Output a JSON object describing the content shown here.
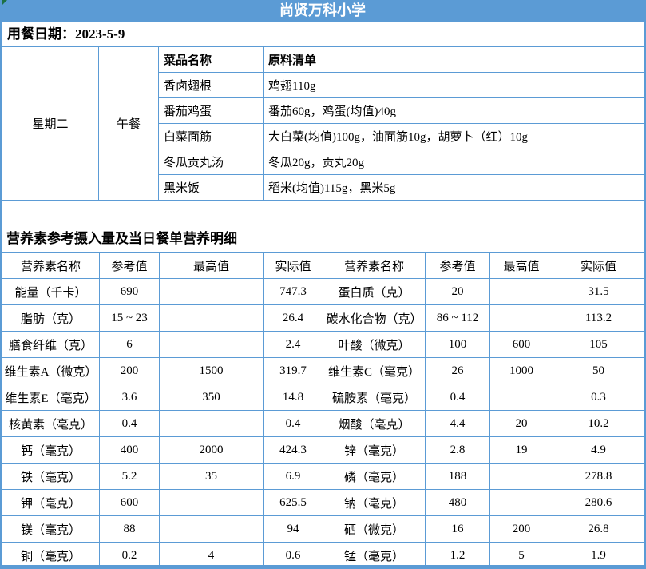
{
  "header": {
    "title": "尚贤万科小学",
    "date_label": "用餐日期：2023-5-9"
  },
  "menu": {
    "day": "星期二",
    "meal": "午餐",
    "col_dish": "菜品名称",
    "col_ingredients": "原料清单",
    "dishes": [
      {
        "name": "香卤翅根",
        "ingredients": "鸡翅110g"
      },
      {
        "name": "番茄鸡蛋",
        "ingredients": "番茄60g，鸡蛋(均值)40g"
      },
      {
        "name": "白菜面筋",
        "ingredients": "大白菜(均值)100g，油面筋10g，胡萝卜（红）10g"
      },
      {
        "name": "冬瓜贡丸汤",
        "ingredients": "冬瓜20g，贡丸20g"
      },
      {
        "name": "黑米饭",
        "ingredients": "稻米(均值)115g，黑米5g"
      }
    ]
  },
  "nutrition": {
    "section_title": "营养素参考摄入量及当日餐单营养明细",
    "headers": [
      "营养素名称",
      "参考值",
      "最高值",
      "实际值"
    ],
    "rows_left": [
      {
        "name": "能量（千卡）",
        "ref": "690",
        "max": "",
        "actual": "747.3"
      },
      {
        "name": "脂肪（克）",
        "ref": "15 ~ 23",
        "max": "",
        "actual": "26.4"
      },
      {
        "name": "膳食纤维（克）",
        "ref": "6",
        "max": "",
        "actual": "2.4"
      },
      {
        "name": "维生素A（微克）",
        "ref": "200",
        "max": "1500",
        "actual": "319.7"
      },
      {
        "name": "维生素E（毫克）",
        "ref": "3.6",
        "max": "350",
        "actual": "14.8"
      },
      {
        "name": "核黄素（毫克）",
        "ref": "0.4",
        "max": "",
        "actual": "0.4"
      },
      {
        "name": "钙（毫克）",
        "ref": "400",
        "max": "2000",
        "actual": "424.3"
      },
      {
        "name": "铁（毫克）",
        "ref": "5.2",
        "max": "35",
        "actual": "6.9"
      },
      {
        "name": "钾（毫克）",
        "ref": "600",
        "max": "",
        "actual": "625.5"
      },
      {
        "name": "镁（毫克）",
        "ref": "88",
        "max": "",
        "actual": "94"
      },
      {
        "name": "铜（毫克）",
        "ref": "0.2",
        "max": "4",
        "actual": "0.6"
      }
    ],
    "rows_right": [
      {
        "name": "蛋白质（克）",
        "ref": "20",
        "max": "",
        "actual": "31.5"
      },
      {
        "name": "碳水化合物（克）",
        "ref": "86 ~ 112",
        "max": "",
        "actual": "113.2"
      },
      {
        "name": "叶酸（微克）",
        "ref": "100",
        "max": "600",
        "actual": "105"
      },
      {
        "name": "维生素C（毫克）",
        "ref": "26",
        "max": "1000",
        "actual": "50"
      },
      {
        "name": "硫胺素（毫克）",
        "ref": "0.4",
        "max": "",
        "actual": "0.3"
      },
      {
        "name": "烟酸（毫克）",
        "ref": "4.4",
        "max": "20",
        "actual": "10.2"
      },
      {
        "name": "锌（毫克）",
        "ref": "2.8",
        "max": "19",
        "actual": "4.9"
      },
      {
        "name": "磷（毫克）",
        "ref": "188",
        "max": "",
        "actual": "278.8"
      },
      {
        "name": "钠（毫克）",
        "ref": "480",
        "max": "",
        "actual": "280.6"
      },
      {
        "name": "硒（微克）",
        "ref": "16",
        "max": "200",
        "actual": "26.8"
      },
      {
        "name": "锰（毫克）",
        "ref": "1.2",
        "max": "5",
        "actual": "1.9"
      }
    ]
  },
  "colors": {
    "accent_blue": "#5B9BD5",
    "corner_marker_green": "#1E7145",
    "title_text": "#FFFFFF"
  }
}
